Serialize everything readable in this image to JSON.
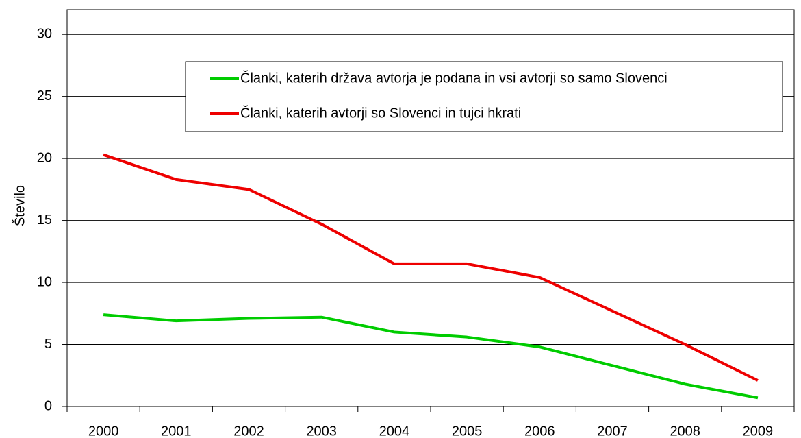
{
  "chart_data": {
    "type": "line",
    "y_label": "Število",
    "categories": [
      "2000",
      "2001",
      "2002",
      "2003",
      "2004",
      "2005",
      "2006",
      "2007",
      "2008",
      "2009"
    ],
    "series": [
      {
        "name": "Članki, katerih država avtorja je podana in vsi avtorji so samo Slovenci",
        "color": "#00cc00",
        "values": [
          7.4,
          6.9,
          7.1,
          7.2,
          6.0,
          5.6,
          4.8,
          3.3,
          1.8,
          0.7
        ]
      },
      {
        "name": "Članki, katerih avtorji so Slovenci in tujci hkrati",
        "color": "#ee0000",
        "values": [
          20.3,
          18.3,
          17.5,
          14.7,
          11.5,
          11.5,
          10.4,
          7.7,
          5.0,
          2.1
        ]
      }
    ],
    "ylim": [
      0,
      32
    ],
    "yticks": [
      0,
      5,
      10,
      15,
      20,
      25,
      30
    ],
    "grid": true,
    "legend": "top-right"
  }
}
